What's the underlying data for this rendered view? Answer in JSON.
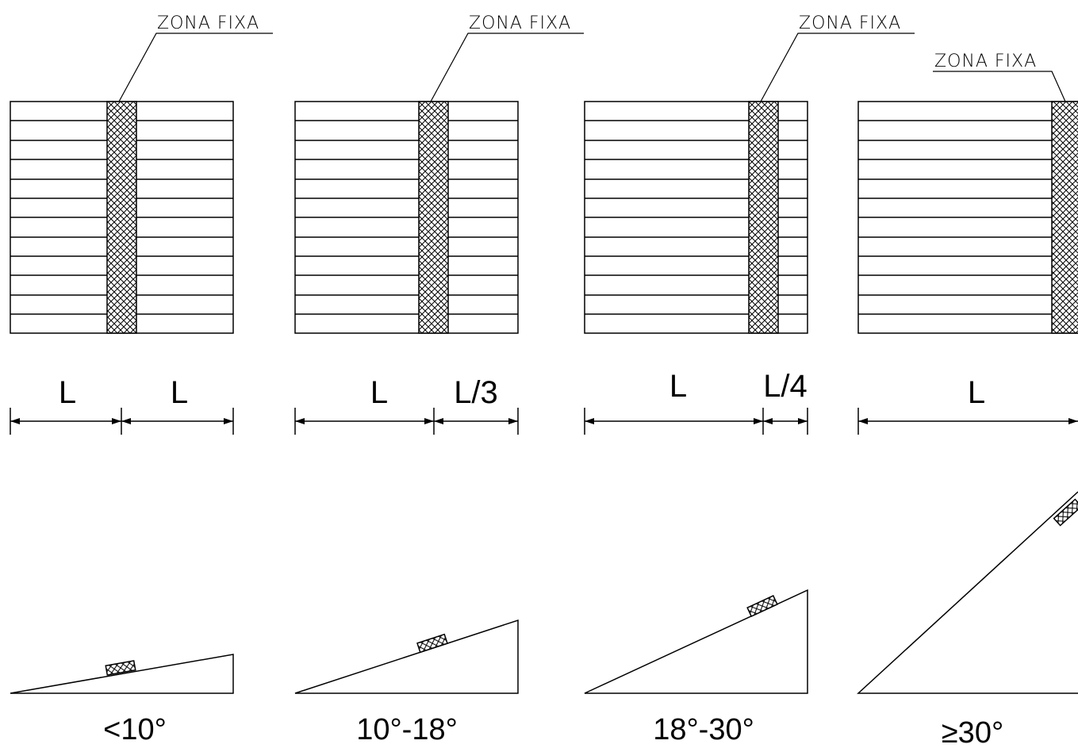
{
  "colors": {
    "line": "#000000",
    "background": "#ffffff"
  },
  "panels": [
    {
      "label": "ZONA FIXA",
      "dims": [
        "L",
        "L"
      ],
      "angle": "<10°"
    },
    {
      "label": "ZONA FIXA",
      "dims": [
        "L",
        "L/3"
      ],
      "angle": "10°-18°"
    },
    {
      "label": "ZONA FIXA",
      "dims": [
        "L",
        "L/4"
      ],
      "angle": "18°-30°"
    },
    {
      "label": "ZONA FIXA",
      "dims": [
        "L"
      ],
      "angle": "≥30°"
    }
  ]
}
